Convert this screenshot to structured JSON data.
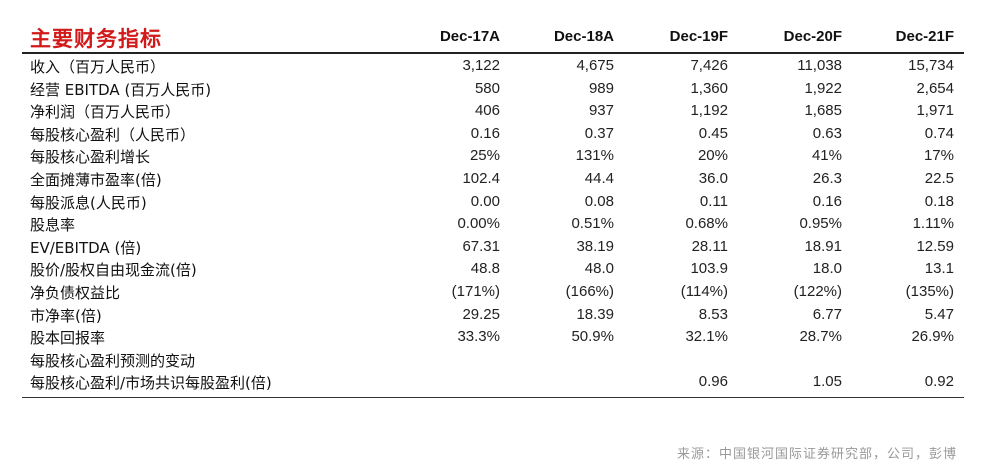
{
  "title": "主要财务指标",
  "columns": [
    "Dec-17A",
    "Dec-18A",
    "Dec-19F",
    "Dec-20F",
    "Dec-21F"
  ],
  "rows": [
    {
      "label": "收入（百万人民币）",
      "values": [
        "3,122",
        "4,675",
        "7,426",
        "11,038",
        "15,734"
      ]
    },
    {
      "label": "经营 EBITDA (百万人民币)",
      "values": [
        "580",
        "989",
        "1,360",
        "1,922",
        "2,654"
      ]
    },
    {
      "label": "净利润（百万人民币）",
      "values": [
        "406",
        "937",
        "1,192",
        "1,685",
        "1,971"
      ]
    },
    {
      "label": "每股核心盈利（人民币）",
      "values": [
        "0.16",
        "0.37",
        "0.45",
        "0.63",
        "0.74"
      ]
    },
    {
      "label": "每股核心盈利增长",
      "values": [
        "25%",
        "131%",
        "20%",
        "41%",
        "17%"
      ]
    },
    {
      "label": "全面摊薄市盈率(倍)",
      "values": [
        "102.4",
        "44.4",
        "36.0",
        "26.3",
        "22.5"
      ]
    },
    {
      "label": "每股派息(人民币)",
      "values": [
        "0.00",
        "0.08",
        "0.11",
        "0.16",
        "0.18"
      ]
    },
    {
      "label": "股息率",
      "values": [
        "0.00%",
        "0.51%",
        "0.68%",
        "0.95%",
        "1.11%"
      ]
    },
    {
      "label": "EV/EBITDA (倍)",
      "values": [
        "67.31",
        "38.19",
        "28.11",
        "18.91",
        "12.59"
      ]
    },
    {
      "label": "股价/股权自由现金流(倍)",
      "values": [
        "48.8",
        "48.0",
        "103.9",
        "18.0",
        "13.1"
      ]
    },
    {
      "label": "净负债权益比",
      "values": [
        "(171%)",
        "(166%)",
        "(114%)",
        "(122%)",
        "(135%)"
      ]
    },
    {
      "label": "市净率(倍)",
      "values": [
        "29.25",
        "18.39",
        "8.53",
        "6.77",
        "5.47"
      ]
    },
    {
      "label": "股本回报率",
      "values": [
        "33.3%",
        "50.9%",
        "32.1%",
        "28.7%",
        "26.9%"
      ]
    },
    {
      "label": "每股核心盈利预测的变动",
      "values": [
        "",
        "",
        "",
        "",
        ""
      ]
    },
    {
      "label": "每股核心盈利/市场共识每股盈利(倍)",
      "values": [
        "",
        "",
        "0.96",
        "1.05",
        "0.92"
      ]
    }
  ],
  "source": "来源：中国银河国际证券研究部，公司，彭博"
}
